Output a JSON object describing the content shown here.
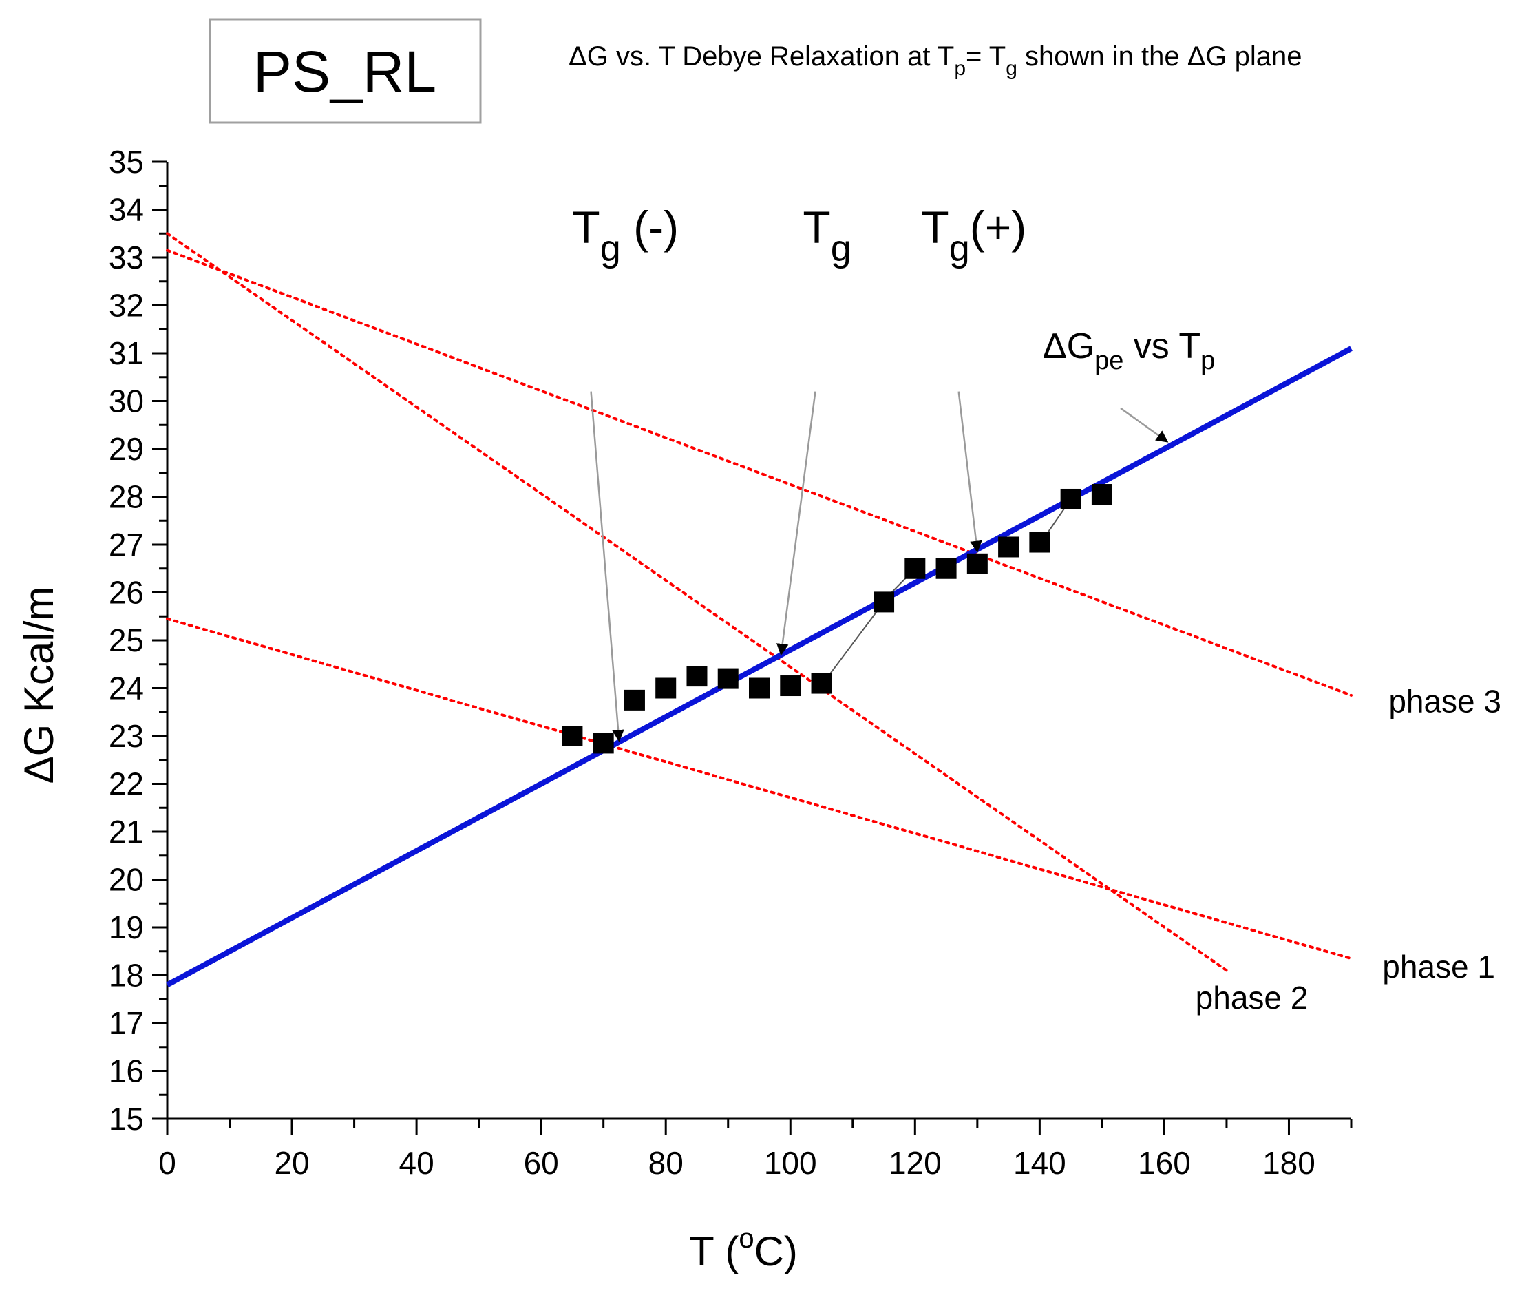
{
  "chart_data": {
    "type": "scatter",
    "legend_box": {
      "text": "PS_RL"
    },
    "header": {
      "p1": "ΔG vs. T Debye Relaxation at T",
      "sub1": "p",
      "p2": "= T",
      "sub2": "g",
      "p3": " shown in the ΔG plane"
    },
    "xlabel": {
      "main": "T (",
      "sup": "o",
      "end": "C)"
    },
    "ylabel": "ΔG Kcal/m",
    "xlim": [
      0,
      190
    ],
    "ylim": [
      15,
      35
    ],
    "x_ticks": [
      "0",
      "20",
      "40",
      "60",
      "80",
      "100",
      "120",
      "140",
      "160",
      "180"
    ],
    "y_ticks": [
      "15",
      "16",
      "17",
      "18",
      "19",
      "20",
      "21",
      "22",
      "23",
      "24",
      "25",
      "26",
      "27",
      "28",
      "29",
      "30",
      "31",
      "32",
      "33",
      "34",
      "35"
    ],
    "series": [
      {
        "kind": "markers",
        "color": "#000000",
        "x": [
          65,
          70,
          75,
          80,
          85,
          90,
          95,
          100,
          105,
          115,
          120,
          125,
          130,
          135,
          140,
          145,
          150
        ],
        "y": [
          23.0,
          22.85,
          23.75,
          24.0,
          24.25,
          24.2,
          24.0,
          24.05,
          24.1,
          25.8,
          26.5,
          26.5,
          26.6,
          26.95,
          27.05,
          27.95,
          28.05
        ]
      },
      {
        "kind": "line",
        "name": "ΔGpe vs Tp",
        "color": "#0a14d8",
        "x": [
          0,
          190
        ],
        "y": [
          17.8,
          31.1
        ]
      },
      {
        "kind": "dotted",
        "name": "phase 1",
        "color": "#ff0000",
        "x": [
          0,
          190
        ],
        "y": [
          25.45,
          18.35
        ]
      },
      {
        "kind": "dotted",
        "name": "phase 2",
        "color": "#ff0000",
        "x": [
          0,
          170
        ],
        "y": [
          33.5,
          18.1
        ]
      },
      {
        "kind": "dotted",
        "name": "phase 3",
        "color": "#ff0000",
        "x": [
          0,
          190
        ],
        "y": [
          33.15,
          23.85
        ]
      }
    ],
    "phase_labels": [
      {
        "text": "phase 3",
        "x": 196,
        "y": 23.5
      },
      {
        "text": "phase 1",
        "x": 195,
        "y": 17.95
      },
      {
        "text": "phase 2",
        "x": 165,
        "y": 17.3
      }
    ],
    "annotations": [
      {
        "main": "T",
        "sub": "g",
        "tail": " (-)",
        "x": 65,
        "y": 33.3,
        "tx": 68,
        "ty": 30.2,
        "ax": 72.5,
        "ay": 22.9
      },
      {
        "main": "T",
        "sub": "g",
        "tail": "",
        "x": 102,
        "y": 33.3,
        "tx": 104,
        "ty": 30.2,
        "ax": 98.5,
        "ay": 24.7
      },
      {
        "main": "T",
        "sub": "g",
        "tail": "(+)",
        "x": 121,
        "y": 33.3,
        "tx": 127,
        "ty": 30.2,
        "ax": 130,
        "ay": 26.85
      },
      {
        "main": "ΔG",
        "sub": "pe",
        "tail": " vs T",
        "sub2": "p",
        "x": 140.5,
        "y": 30.9,
        "tx": 153,
        "ty": 29.85,
        "ax": 160.5,
        "ay": 29.15
      }
    ],
    "connectors": [
      {
        "x1": 105.5,
        "y1": 24.15,
        "x2": 115,
        "y2": 25.8
      },
      {
        "x1": 115.5,
        "y1": 25.9,
        "x2": 120,
        "y2": 26.5
      },
      {
        "x1": 140.5,
        "y1": 27.1,
        "x2": 145,
        "y2": 27.95
      }
    ]
  }
}
